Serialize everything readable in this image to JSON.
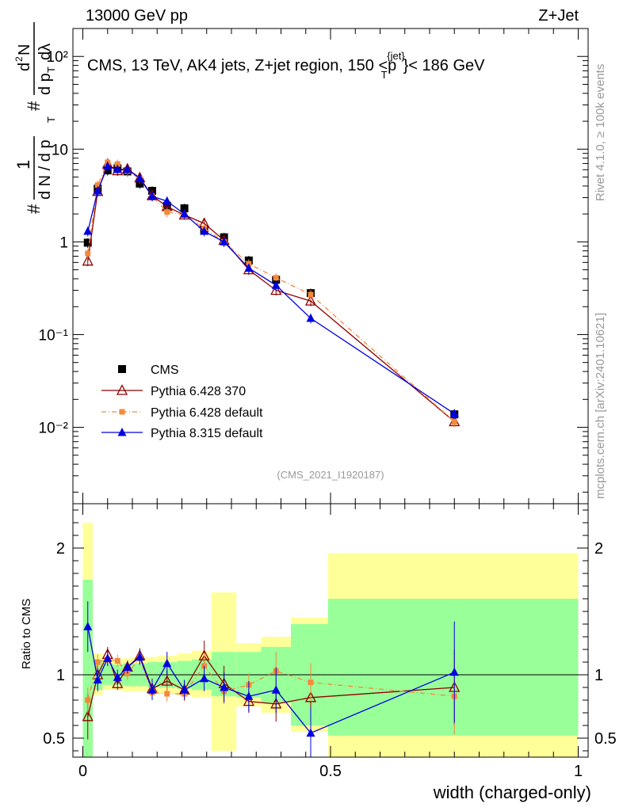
{
  "header": {
    "left": "13000 GeV pp",
    "right": "Z+Jet"
  },
  "plot_title": "CMS, 13 TeV, AK4 jets, Z+jet region, 150 <p",
  "plot_title_sup": "{jet}",
  "plot_title_sub": "T",
  "plot_title_tail": "}< 186 GeV",
  "side_labels": {
    "top": "Rivet 4.1.0, ≥ 100k events",
    "bottom": "mcplots.cern.ch [arXiv:2401.10621]"
  },
  "analysis_id": "(CMS_2021_I1920187)",
  "x_axis_label": "width (charged-only)",
  "ratio_axis_label": "Ratio to CMS",
  "y_axis_label_parts": [
    "1",
    "d N / d p",
    "T",
    "d",
    "2",
    "N",
    "d p",
    "T",
    "dλ",
    "#",
    "#"
  ],
  "colors": {
    "cms": "#000000",
    "p6_370": "#8b0000",
    "p6_default": "#f4893b",
    "p8": "#0000e0",
    "band_inner": "#99ff99",
    "band_outer": "#ffff99"
  },
  "chart_data": [
    {
      "type": "scatter",
      "title": "CMS, 13 TeV, AK4 jets, Z+jet region, 150 <pT{jet}< 186 GeV",
      "xlabel": "width (charged-only)",
      "ylabel": "1/(dN/dpT) d2N/(dpT dλ)",
      "yscale": "log",
      "xlim": [
        -0.02,
        1.02
      ],
      "ylim": [
        0.0015,
        200
      ],
      "y_ticks": [
        {
          "value": 0.01,
          "label": "10⁻²"
        },
        {
          "value": 0.1,
          "label": "10⁻¹"
        },
        {
          "value": 1,
          "label": "1"
        },
        {
          "value": 10,
          "label": "10"
        },
        {
          "value": 100,
          "label": "10²"
        }
      ],
      "x": [
        0.01,
        0.03,
        0.05,
        0.07,
        0.09,
        0.115,
        0.14,
        0.17,
        0.205,
        0.245,
        0.285,
        0.335,
        0.39,
        0.46,
        0.75
      ],
      "legend": [
        "CMS",
        "Pythia 6.428 370",
        "Pythia 6.428 default",
        "Pythia 8.315 default"
      ],
      "series": [
        {
          "name": "CMS",
          "key": "cms",
          "marker": "square",
          "values": [
            0.98,
            3.75,
            5.9,
            6.2,
            5.75,
            4.25,
            3.55,
            2.45,
            2.3,
            1.35,
            1.12,
            0.63,
            0.39,
            0.28,
            0.0138
          ]
        },
        {
          "name": "Pythia 6.428 370",
          "key": "p6_370",
          "marker": "open-triangle",
          "values": [
            0.62,
            3.5,
            6.9,
            5.85,
            6.1,
            4.9,
            3.15,
            2.4,
            1.95,
            1.58,
            1.04,
            0.5,
            0.3,
            0.23,
            0.0115
          ]
        },
        {
          "name": "Pythia 6.428 default",
          "key": "p6_default",
          "marker": "square-small",
          "values": [
            0.75,
            4.1,
            7.2,
            6.9,
            5.8,
            4.8,
            3.1,
            2.1,
            1.95,
            1.4,
            1.0,
            0.58,
            0.41,
            0.27,
            0.0115
          ]
        },
        {
          "name": "Pythia 8.315 default",
          "key": "p8",
          "marker": "triangle",
          "values": [
            1.3,
            3.55,
            6.55,
            6.05,
            6.05,
            4.85,
            3.1,
            2.75,
            2.0,
            1.3,
            1.0,
            0.52,
            0.34,
            0.15,
            0.014
          ]
        }
      ]
    },
    {
      "type": "scatter",
      "title": "Ratio to CMS",
      "ylabel": "Ratio to CMS",
      "xlabel": "width (charged-only)",
      "xlim": [
        -0.02,
        1.02
      ],
      "ylim": [
        0.35,
        2.35
      ],
      "x_ticks": [
        {
          "value": 0,
          "label": "0"
        },
        {
          "value": 0.5,
          "label": "0.5"
        },
        {
          "value": 1,
          "label": "1"
        }
      ],
      "y_ticks": [
        {
          "value": 0.5,
          "label": "0.5"
        },
        {
          "value": 1,
          "label": "1"
        },
        {
          "value": 2,
          "label": "2"
        }
      ],
      "bins": [
        {
          "lo": 0.0,
          "hi": 0.02,
          "inner": [
            0.18,
            1.75
          ],
          "outer": [
            0.0,
            2.2
          ]
        },
        {
          "lo": 0.02,
          "hi": 0.04,
          "inner": [
            0.88,
            1.12
          ],
          "outer": [
            0.84,
            1.17
          ]
        },
        {
          "lo": 0.04,
          "hi": 0.06,
          "inner": [
            0.92,
            1.09
          ],
          "outer": [
            0.88,
            1.14
          ]
        },
        {
          "lo": 0.06,
          "hi": 0.08,
          "inner": [
            0.92,
            1.08
          ],
          "outer": [
            0.88,
            1.12
          ]
        },
        {
          "lo": 0.08,
          "hi": 0.1,
          "inner": [
            0.91,
            1.09
          ],
          "outer": [
            0.87,
            1.13
          ]
        },
        {
          "lo": 0.1,
          "hi": 0.13,
          "inner": [
            0.91,
            1.09
          ],
          "outer": [
            0.87,
            1.14
          ]
        },
        {
          "lo": 0.13,
          "hi": 0.15,
          "inner": [
            0.9,
            1.1
          ],
          "outer": [
            0.86,
            1.14
          ]
        },
        {
          "lo": 0.15,
          "hi": 0.19,
          "inner": [
            0.9,
            1.1
          ],
          "outer": [
            0.85,
            1.15
          ]
        },
        {
          "lo": 0.19,
          "hi": 0.22,
          "inner": [
            0.89,
            1.11
          ],
          "outer": [
            0.84,
            1.17
          ]
        },
        {
          "lo": 0.22,
          "hi": 0.26,
          "inner": [
            0.88,
            1.12
          ],
          "outer": [
            0.82,
            1.19
          ]
        },
        {
          "lo": 0.26,
          "hi": 0.31,
          "inner": [
            0.83,
            1.18
          ],
          "outer": [
            0.4,
            1.65
          ]
        },
        {
          "lo": 0.31,
          "hi": 0.36,
          "inner": [
            0.82,
            1.18
          ],
          "outer": [
            0.75,
            1.25
          ]
        },
        {
          "lo": 0.36,
          "hi": 0.42,
          "inner": [
            0.78,
            1.22
          ],
          "outer": [
            0.7,
            1.3
          ]
        },
        {
          "lo": 0.42,
          "hi": 0.495,
          "inner": [
            0.6,
            1.4
          ],
          "outer": [
            0.55,
            1.45
          ]
        },
        {
          "lo": 0.495,
          "hi": 1.0,
          "inner": [
            0.52,
            1.6
          ],
          "outer": [
            0.35,
            1.96
          ]
        }
      ],
      "x": [
        0.01,
        0.03,
        0.05,
        0.07,
        0.09,
        0.115,
        0.14,
        0.17,
        0.205,
        0.245,
        0.285,
        0.335,
        0.39,
        0.46,
        0.75
      ],
      "series": [
        {
          "name": "Pythia 6.428 370",
          "key": "p6_370",
          "marker": "open-triangle",
          "values": [
            0.67,
            1.0,
            1.16,
            0.93,
            1.06,
            1.15,
            0.89,
            0.95,
            0.88,
            1.15,
            0.93,
            0.79,
            0.77,
            0.82,
            0.9
          ],
          "errors": [
            0.18,
            0.08,
            0.06,
            0.05,
            0.05,
            0.06,
            0.08,
            0.08,
            0.07,
            0.12,
            0.14,
            0.09,
            0.14,
            0.14,
            0.3
          ]
        },
        {
          "name": "Pythia 6.428 default",
          "key": "p6_default",
          "marker": "square-small",
          "values": [
            0.8,
            1.1,
            1.12,
            1.11,
            1.01,
            1.13,
            0.86,
            0.85,
            0.85,
            1.07,
            0.87,
            0.92,
            1.03,
            0.94,
            0.83
          ],
          "errors": [
            0.1,
            0.06,
            0.05,
            0.05,
            0.05,
            0.05,
            0.06,
            0.06,
            0.06,
            0.1,
            0.1,
            0.09,
            0.15,
            0.15,
            0.3
          ]
        },
        {
          "name": "Pythia 8.315 default",
          "key": "p8",
          "marker": "triangle",
          "values": [
            1.38,
            0.96,
            1.13,
            0.98,
            1.06,
            1.14,
            0.88,
            1.09,
            0.88,
            0.97,
            0.9,
            0.83,
            0.88,
            0.54,
            1.02
          ],
          "errors": [
            0.2,
            0.09,
            0.06,
            0.06,
            0.05,
            0.06,
            0.08,
            0.09,
            0.08,
            0.1,
            0.12,
            0.12,
            0.18,
            0.2,
            0.4
          ]
        }
      ]
    }
  ]
}
